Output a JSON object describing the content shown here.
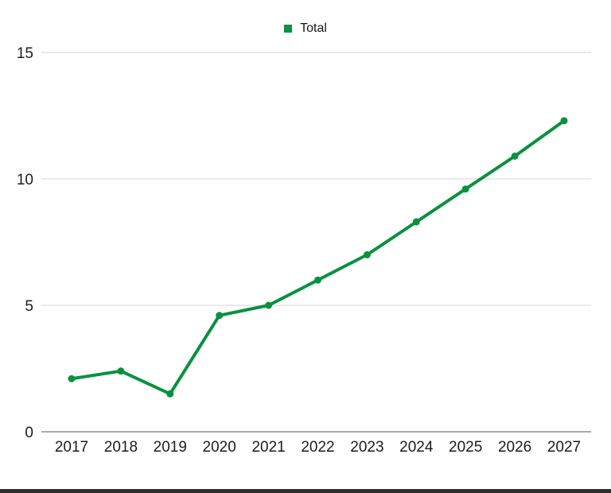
{
  "page": {
    "background": "#ffffff",
    "footer_bar_color": "#2d2d2d"
  },
  "chart_data": {
    "type": "line",
    "title": "",
    "categories": [
      "2017",
      "2018",
      "2019",
      "2020",
      "2021",
      "2022",
      "2023",
      "2024",
      "2025",
      "2026",
      "2027"
    ],
    "series": [
      {
        "name": "Total",
        "color": "#0a9140",
        "values": [
          2.1,
          2.4,
          1.5,
          4.6,
          5.0,
          6.0,
          7.0,
          8.3,
          9.6,
          10.9,
          12.3
        ]
      }
    ],
    "xlabel": "",
    "ylabel": "",
    "ylim": [
      0,
      15
    ],
    "yticks": [
      0,
      5,
      10,
      15
    ],
    "grid": true,
    "legend_position": "top-center",
    "marker": "circle",
    "colors": {
      "grid_line": "#e4e4e4",
      "axis_line": "#aaaaaa",
      "tick_text": "#1c1c1c"
    }
  }
}
